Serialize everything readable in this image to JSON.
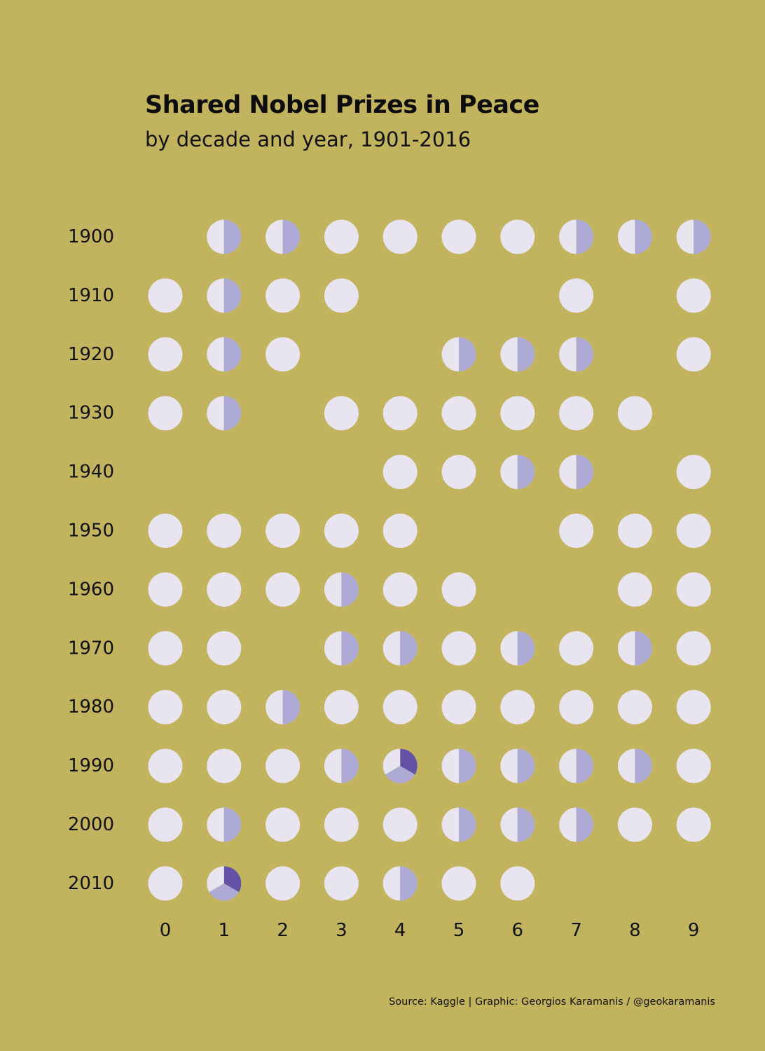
{
  "title": "Shared Nobel Prizes in Peace",
  "subtitle": "by decade and year, 1901-2016",
  "caption": "Source: Kaggle | Graphic: Georgios Karamanis / @geokaramanis",
  "colors": {
    "background": "#c2b35f",
    "single_laureate": "#e8e5f0",
    "second_share": "#adaad6",
    "third_share": "#6352a6",
    "text": "#111111"
  },
  "chart_data": {
    "type": "pie-grid",
    "xlabel": "",
    "ylabel": "",
    "decades": [
      "1900",
      "1910",
      "1920",
      "1930",
      "1940",
      "1950",
      "1960",
      "1970",
      "1980",
      "1990",
      "2000",
      "2010"
    ],
    "years": [
      "0",
      "1",
      "2",
      "3",
      "4",
      "5",
      "6",
      "7",
      "8",
      "9"
    ],
    "laureates_per_year": [
      [
        0,
        2,
        2,
        1,
        1,
        1,
        1,
        2,
        2,
        2
      ],
      [
        1,
        2,
        1,
        1,
        0,
        0,
        0,
        1,
        0,
        1
      ],
      [
        1,
        2,
        1,
        0,
        0,
        2,
        2,
        2,
        0,
        1
      ],
      [
        1,
        2,
        0,
        1,
        1,
        1,
        1,
        1,
        1,
        0
      ],
      [
        0,
        0,
        0,
        0,
        1,
        1,
        2,
        2,
        0,
        1
      ],
      [
        1,
        1,
        1,
        1,
        1,
        0,
        0,
        1,
        1,
        1
      ],
      [
        1,
        1,
        1,
        2,
        1,
        1,
        0,
        0,
        1,
        1
      ],
      [
        1,
        1,
        0,
        2,
        2,
        1,
        2,
        1,
        2,
        1
      ],
      [
        1,
        1,
        2,
        1,
        1,
        1,
        1,
        1,
        1,
        1
      ],
      [
        1,
        1,
        1,
        2,
        3,
        2,
        2,
        2,
        2,
        1
      ],
      [
        1,
        2,
        1,
        1,
        1,
        2,
        2,
        2,
        1,
        1
      ],
      [
        1,
        3,
        1,
        1,
        2,
        1,
        1,
        0,
        0,
        0
      ]
    ]
  }
}
